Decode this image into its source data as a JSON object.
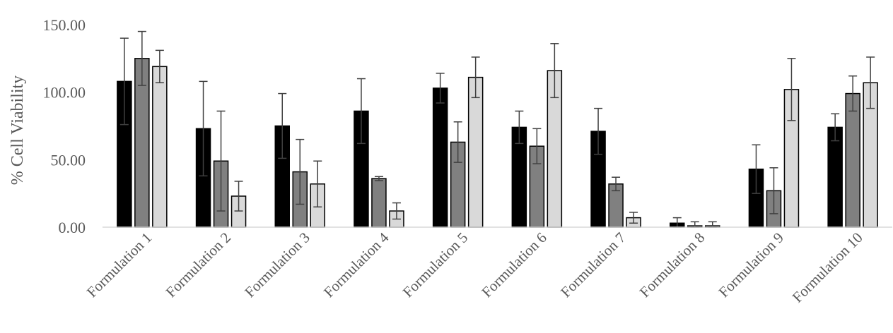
{
  "chart_data": {
    "type": "bar",
    "title": "",
    "xlabel": "",
    "ylabel": "% Cell Viability",
    "ylim": [
      0,
      150
    ],
    "yticks": [
      "0.00",
      "50.00",
      "100.00",
      "150.00"
    ],
    "grid": false,
    "legend": "none",
    "categories": [
      "Formulation 1",
      "Formulation 2",
      "Formulation 3",
      "Formulation 4",
      "Formulation 5",
      "Formulation 6",
      "Formulation 7",
      "Formulation 8",
      "Formulation 9",
      "Formulation 10"
    ],
    "series": [
      {
        "color": "#000000",
        "values": [
          108,
          73,
          75,
          86,
          103,
          74,
          71,
          3,
          43,
          74
        ],
        "errors": [
          32,
          35,
          24,
          24,
          11,
          12,
          17,
          4,
          18,
          10
        ]
      },
      {
        "color": "#808080",
        "values": [
          125,
          49,
          41,
          36,
          63,
          60,
          32,
          1,
          27,
          99
        ],
        "errors": [
          20,
          37,
          24,
          1.5,
          15,
          13,
          5,
          3,
          17,
          13
        ]
      },
      {
        "color": "#d9d9d9",
        "values": [
          119,
          23,
          32,
          12,
          111,
          116,
          7,
          1,
          102,
          107
        ],
        "errors": [
          12,
          11,
          17,
          6,
          15,
          20,
          4,
          3,
          23,
          19
        ]
      }
    ]
  }
}
